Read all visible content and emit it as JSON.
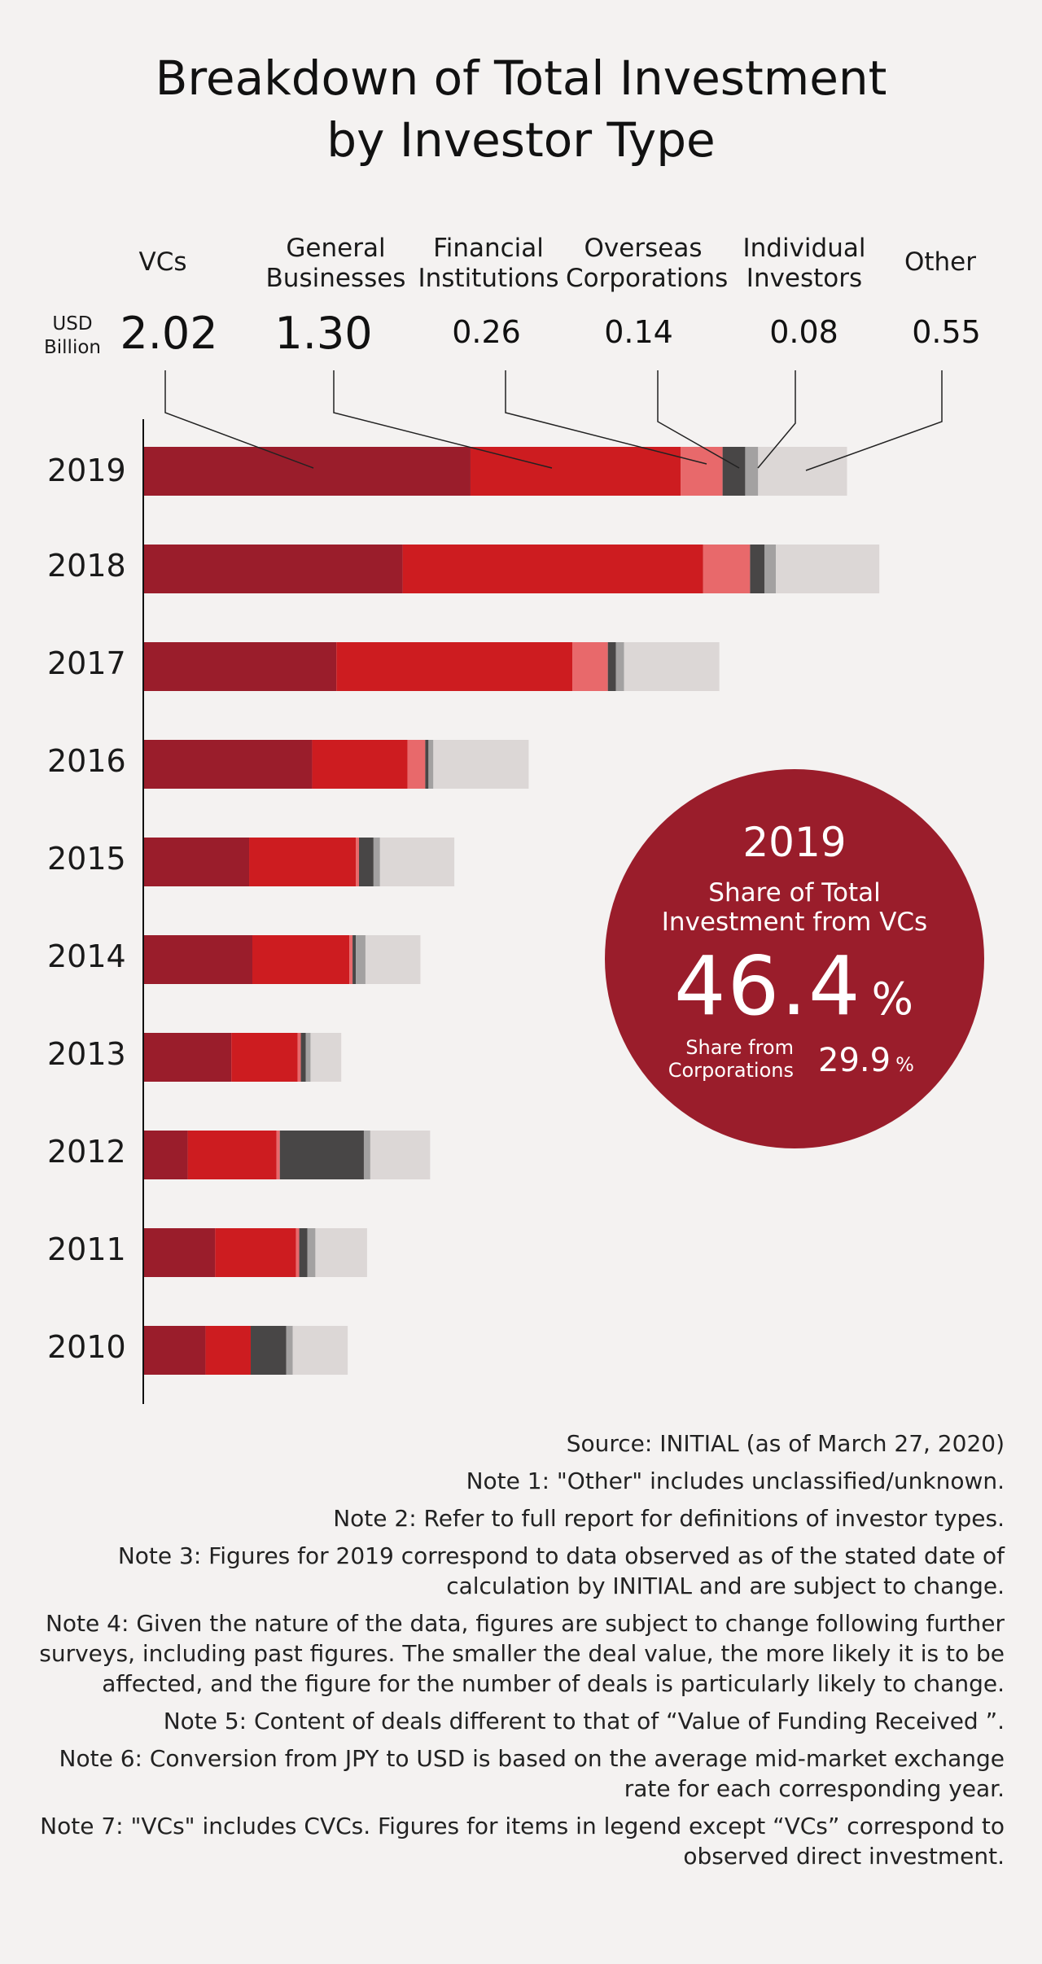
{
  "title_line1": "Breakdown of Total Investment",
  "title_line2": "by Investor Type",
  "unit_line1": "USD",
  "unit_line2": "Billion",
  "legend": [
    {
      "line1": "VCs",
      "line2": "",
      "value": "2.02"
    },
    {
      "line1": "General",
      "line2": "Businesses",
      "value": "1.30"
    },
    {
      "line1": "Financial",
      "line2": "Institutions",
      "value": "0.26"
    },
    {
      "line1": "Overseas",
      "line2": "Corporations",
      "value": "0.14"
    },
    {
      "line1": "Individual",
      "line2": "Investors",
      "value": "0.08"
    },
    {
      "line1": "Other",
      "line2": "",
      "value": "0.55"
    }
  ],
  "chart_data": {
    "type": "bar",
    "orientation": "horizontal",
    "stacked": true,
    "title": "Breakdown of Total Investment by Investor Type",
    "unit": "USD Billion",
    "categories": [
      "2019",
      "2018",
      "2017",
      "2016",
      "2015",
      "2014",
      "2013",
      "2012",
      "2011",
      "2010"
    ],
    "series": [
      {
        "name": "VCs",
        "color": "#9a1d2b",
        "values": [
          2.02,
          1.6,
          1.19,
          1.04,
          0.65,
          0.67,
          0.54,
          0.27,
          0.44,
          0.38
        ]
      },
      {
        "name": "General Businesses",
        "color": "#cd1c20",
        "values": [
          1.3,
          1.86,
          1.46,
          0.59,
          0.66,
          0.6,
          0.41,
          0.55,
          0.5,
          0.28
        ]
      },
      {
        "name": "Financial Institutions",
        "color": "#e8696b",
        "values": [
          0.26,
          0.29,
          0.22,
          0.11,
          0.02,
          0.02,
          0.02,
          0.02,
          0.02,
          0.0
        ]
      },
      {
        "name": "Overseas Corporations",
        "color": "#484646",
        "values": [
          0.14,
          0.09,
          0.05,
          0.02,
          0.09,
          0.02,
          0.03,
          0.52,
          0.05,
          0.22
        ]
      },
      {
        "name": "Individual Investors",
        "color": "#a3a1a1",
        "values": [
          0.08,
          0.07,
          0.05,
          0.03,
          0.04,
          0.06,
          0.03,
          0.04,
          0.05,
          0.04
        ]
      },
      {
        "name": "Other",
        "color": "#dcd7d6",
        "values": [
          0.55,
          0.64,
          0.59,
          0.59,
          0.46,
          0.34,
          0.19,
          0.37,
          0.32,
          0.34
        ]
      }
    ],
    "xlim": [
      0,
      4.6
    ],
    "grid": false,
    "legend_position": "top"
  },
  "highlight": {
    "year": "2019",
    "title_line1": "Share of Total",
    "title_line2": "Investment from VCs",
    "value": "46.4",
    "pct": "%",
    "sub_line1": "Share from",
    "sub_line2": "Corporations",
    "sub_value": "29.9",
    "sub_pct": "%"
  },
  "notes": [
    "Source: INITIAL (as of March 27, 2020)",
    "Note 1: \"Other\" includes unclassified/unknown.",
    "Note 2: Refer to full report for definitions of investor types.",
    "Note 3: Figures for 2019 correspond to data observed as of the stated date of calculation by INITIAL and are subject to change.",
    "Note 4: Given the nature of the data, figures are subject to change following further surveys, including past figures. The smaller the deal value, the more likely it is to be affected, and the figure for the number of deals is particularly likely to change.",
    "Note 5: Content of deals different to that of “Value of Funding Received ”.",
    "Note 6: Conversion from JPY to USD is based on the average mid-market exchange rate for each corresponding year.",
    "Note 7: \"VCs\" includes CVCs. Figures for items in legend except “VCs” correspond to observed direct investment."
  ]
}
